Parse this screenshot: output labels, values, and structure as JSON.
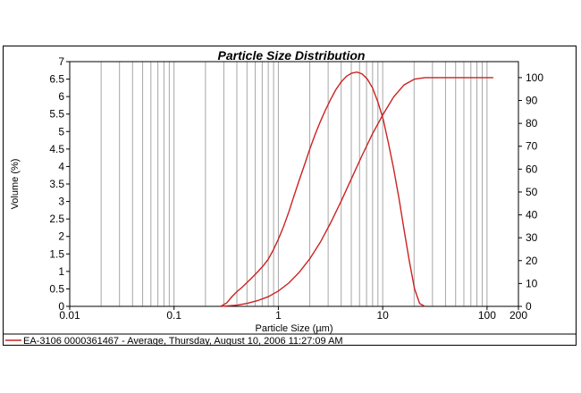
{
  "chart_data": {
    "type": "line",
    "title": "Particle Size Distribution",
    "xlabel": "Particle Size (µm)",
    "ylabel": "Volume (%)",
    "x_scale": "log",
    "xlim": [
      0.01,
      200
    ],
    "ylim": [
      0,
      7
    ],
    "y2lim": [
      0,
      107
    ],
    "x_ticks": [
      "0.01",
      "0.1",
      "1",
      "10",
      "100",
      "200"
    ],
    "y_ticks": [
      "0",
      "0.5",
      "1",
      "1.5",
      "2",
      "2.5",
      "3",
      "3.5",
      "4",
      "4.5",
      "5",
      "5.5",
      "6",
      "6.5",
      "7"
    ],
    "y2_ticks": [
      "0",
      "10",
      "20",
      "30",
      "40",
      "50",
      "60",
      "70",
      "80",
      "90",
      "100"
    ],
    "grid": true,
    "legend_position": "bottom",
    "legend_label": "EA-3106 0000361467 - Average, Thursday, August 10, 2006 11:27:09 AM",
    "line_color": "#cc2222",
    "series": [
      {
        "axis": "left",
        "x": [
          0.28,
          0.32,
          0.36,
          0.4,
          0.45,
          0.5,
          0.56,
          0.63,
          0.71,
          0.8,
          0.89,
          1.0,
          1.12,
          1.26,
          1.41,
          1.58,
          1.78,
          2.0,
          2.24,
          2.52,
          2.83,
          3.17,
          3.56,
          4.0,
          4.49,
          5.04,
          5.66,
          6.35,
          7.13,
          8.0,
          8.98,
          10.1,
          11.3,
          12.7,
          14.3,
          16.0,
          18.0,
          20.2,
          22.6,
          25.4
        ],
        "y": [
          0,
          0.1,
          0.28,
          0.42,
          0.55,
          0.68,
          0.82,
          0.98,
          1.15,
          1.35,
          1.6,
          1.92,
          2.28,
          2.7,
          3.15,
          3.6,
          4.05,
          4.5,
          4.9,
          5.28,
          5.62,
          5.92,
          6.2,
          6.42,
          6.58,
          6.67,
          6.7,
          6.65,
          6.5,
          6.25,
          5.85,
          5.35,
          4.7,
          3.95,
          3.1,
          2.2,
          1.3,
          0.5,
          0.08,
          0
        ]
      },
      {
        "axis": "right",
        "x": [
          0.28,
          0.4,
          0.5,
          0.63,
          0.8,
          1.0,
          1.26,
          1.58,
          2.0,
          2.52,
          3.17,
          4.0,
          5.04,
          6.35,
          8.0,
          10.1,
          12.7,
          16.0,
          20.2,
          25.4,
          32,
          50,
          100,
          115
        ],
        "y": [
          0,
          0.5,
          1.3,
          2.5,
          4.2,
          6.7,
          10.2,
          14.8,
          20.8,
          28,
          36.5,
          46,
          56,
          66,
          75.5,
          84,
          91.5,
          96.8,
          99.4,
          100,
          100,
          100,
          100,
          100
        ]
      }
    ]
  }
}
